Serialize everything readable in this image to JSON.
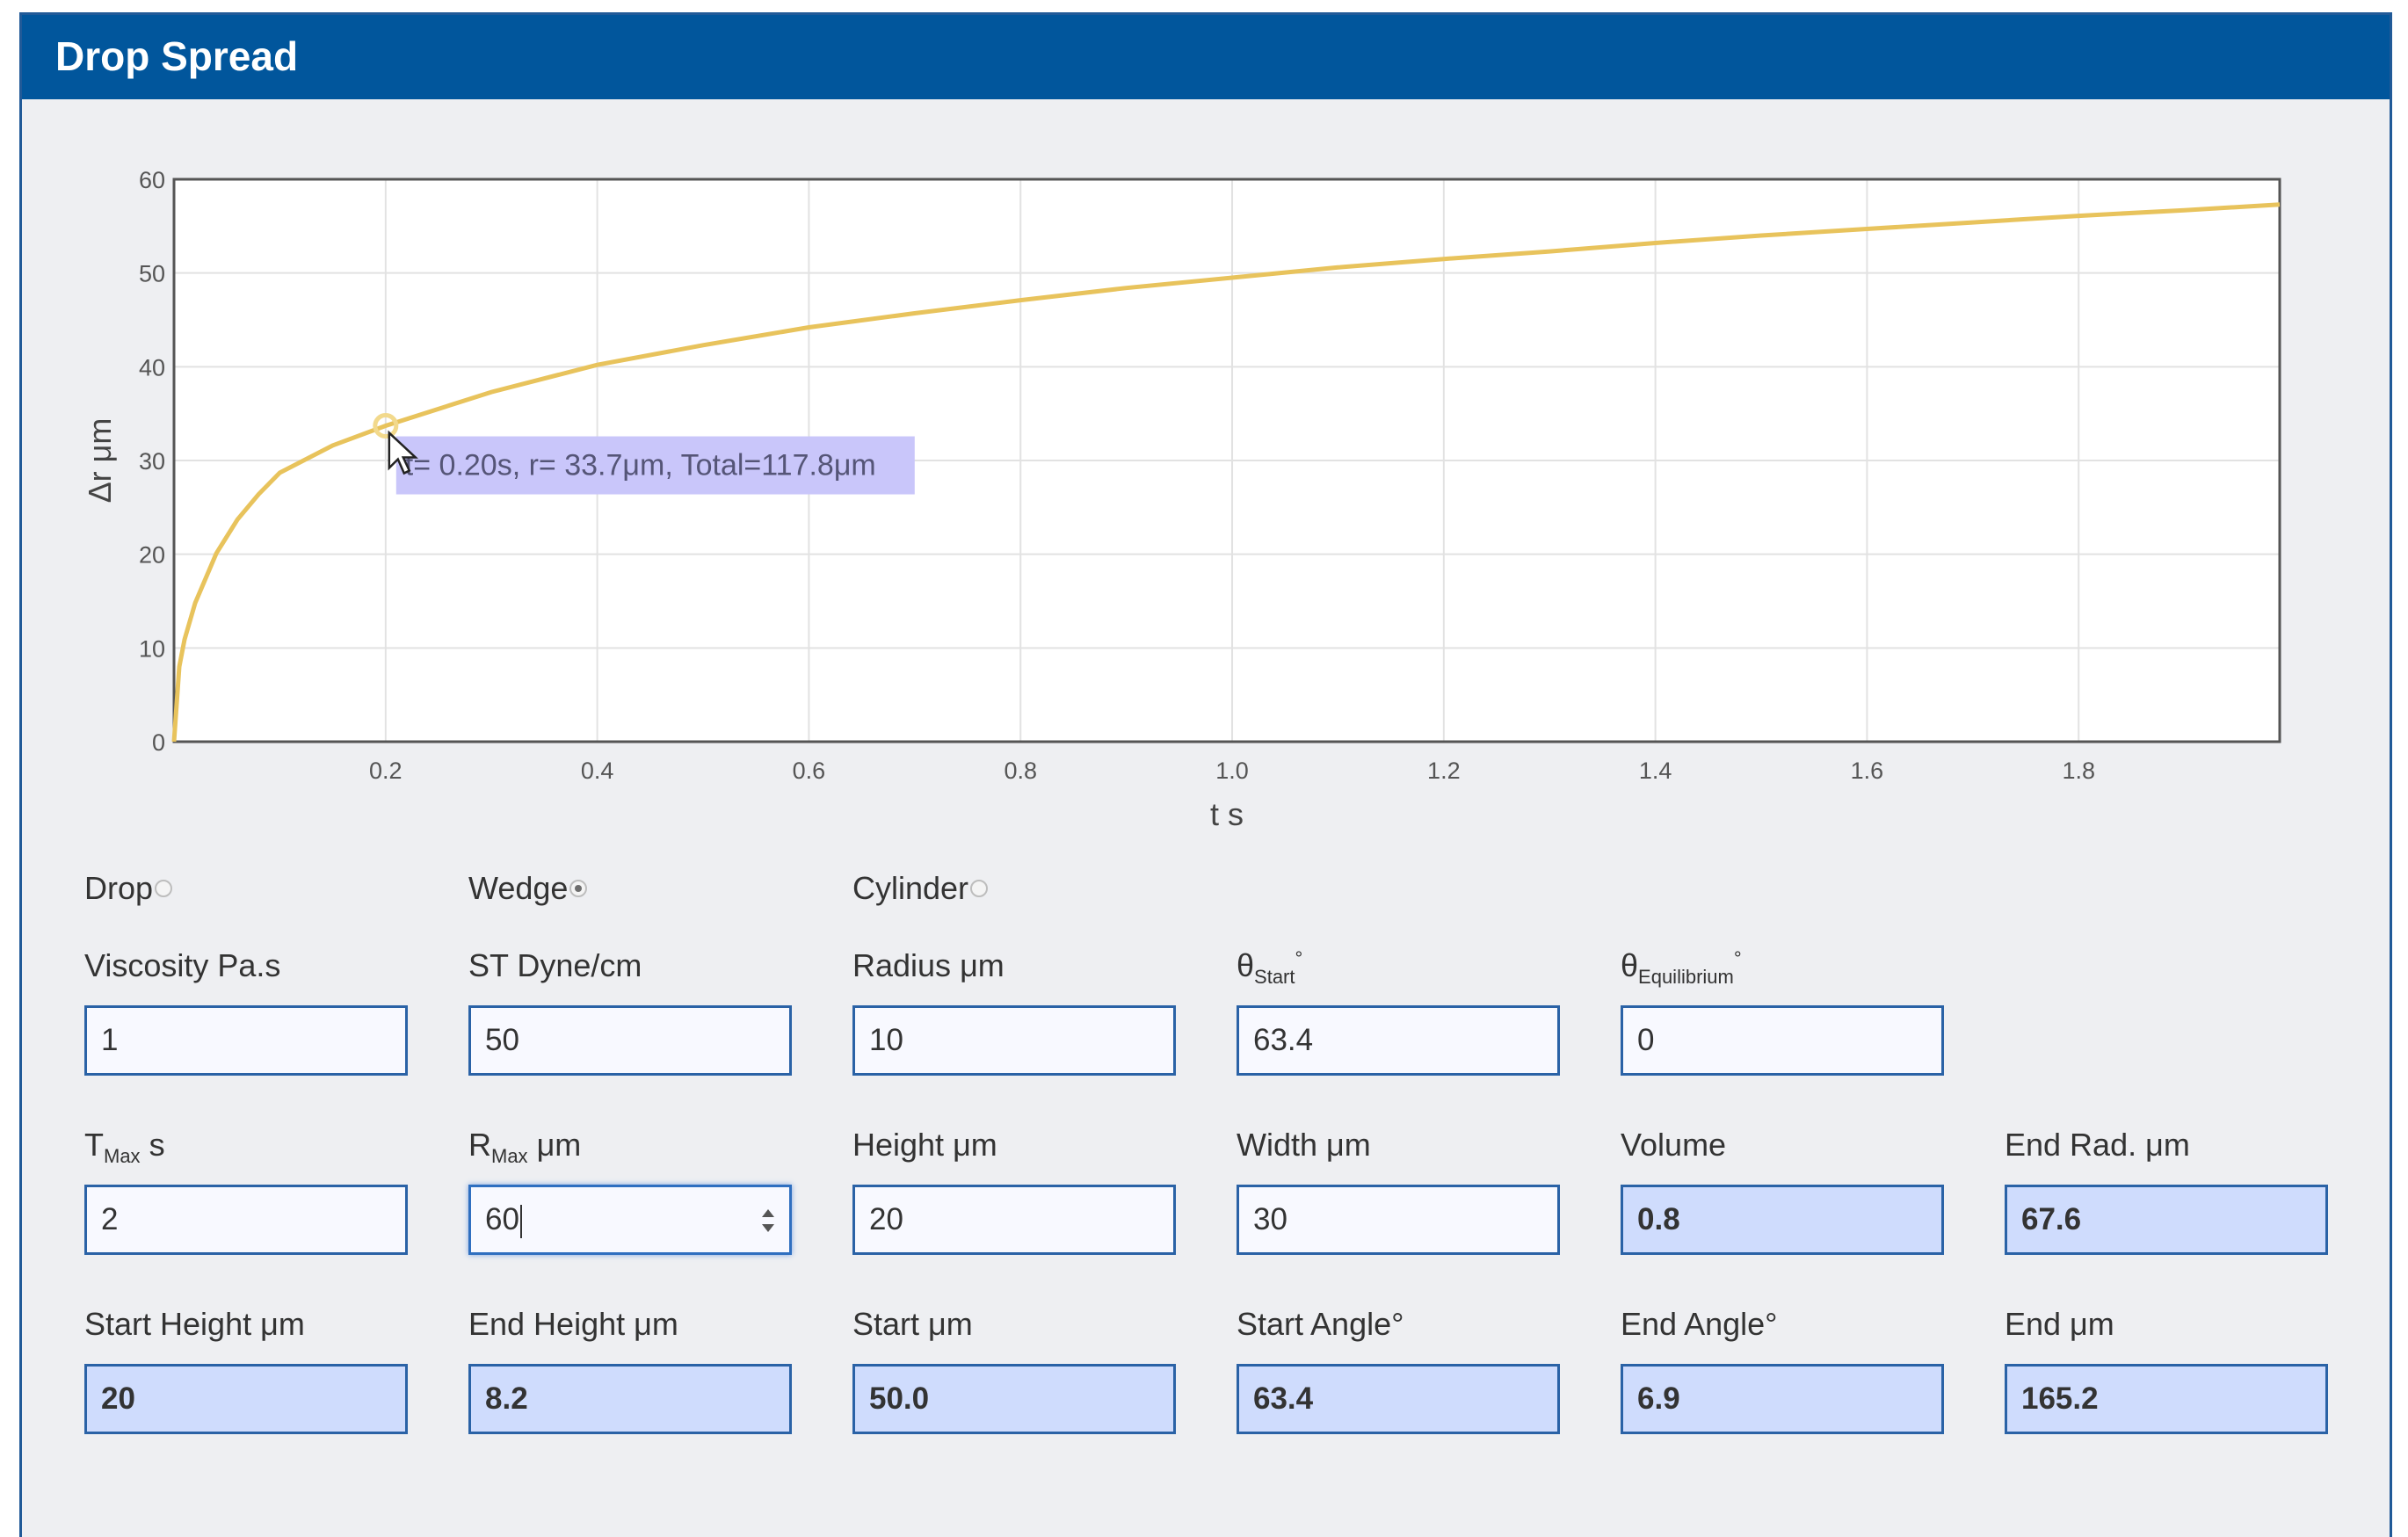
{
  "window": {
    "title": "Drop Spread"
  },
  "chart_data": {
    "type": "line",
    "xlabel": "t s",
    "ylabel": "Δr μm",
    "xlim": [
      0,
      1.99
    ],
    "ylim": [
      0,
      60
    ],
    "x_ticks": [
      "0.2",
      "0.4",
      "0.6",
      "0.8",
      "1.0",
      "1.2",
      "1.4",
      "1.6",
      "1.8"
    ],
    "y_ticks": [
      "0",
      "10",
      "20",
      "30",
      "40",
      "50",
      "60"
    ],
    "grid": true,
    "line_color": "#e8c35c",
    "series": [
      {
        "x": [
          0,
          0.005,
          0.01,
          0.02,
          0.04,
          0.06,
          0.08,
          0.1,
          0.15,
          0.2,
          0.3,
          0.4,
          0.5,
          0.6,
          0.7,
          0.8,
          0.9,
          1.0,
          1.1,
          1.2,
          1.3,
          1.4,
          1.5,
          1.6,
          1.7,
          1.8,
          1.9,
          1.99
        ],
        "y": [
          0,
          8.0,
          10.9,
          14.8,
          20.1,
          23.7,
          26.4,
          28.7,
          31.6,
          33.7,
          37.3,
          40.2,
          42.3,
          44.2,
          45.7,
          47.1,
          48.4,
          49.5,
          50.6,
          51.5,
          52.3,
          53.2,
          54.0,
          54.7,
          55.4,
          56.1,
          56.7,
          57.3
        ]
      }
    ],
    "highlight_point": {
      "x": 0.2,
      "y": 33.7
    },
    "tooltip": "t= 0.20s, r= 33.7μm, Total=117.8μm"
  },
  "radios": [
    {
      "label": "Drop",
      "checked": false
    },
    {
      "label": "Wedge",
      "checked": true
    },
    {
      "label": "Cylinder",
      "checked": false
    }
  ],
  "fields": {
    "viscosity": {
      "label": "Viscosity Pa.s",
      "value": "1"
    },
    "st": {
      "label": "ST Dyne/cm",
      "value": "50"
    },
    "radius": {
      "label": "Radius μm",
      "value": "10"
    },
    "theta_start": {
      "label_main": "θ",
      "label_sub": "Start",
      "label_sup": "°",
      "value": "63.4"
    },
    "theta_eq": {
      "label_main": "θ",
      "label_sub": "Equilibrium",
      "label_sup": "°",
      "value": "0"
    },
    "tmax": {
      "label_main": "T",
      "label_sub": "Max",
      "label_rest": " s",
      "value": "2"
    },
    "rmax": {
      "label_main": "R",
      "label_sub": "Max",
      "label_rest": " μm",
      "value": "60"
    },
    "height": {
      "label": "Height μm",
      "value": "20"
    },
    "width": {
      "label": "Width μm",
      "value": "30"
    },
    "volume": {
      "label": "Volume",
      "value": "0.8"
    },
    "end_rad": {
      "label": "End Rad. μm",
      "value": "67.6"
    },
    "start_height": {
      "label": "Start Height μm",
      "value": "20"
    },
    "end_height": {
      "label": "End Height μm",
      "value": "8.2"
    },
    "start": {
      "label": "Start μm",
      "value": "50.0"
    },
    "start_angle": {
      "label": "Start Angle°",
      "value": "63.4"
    },
    "end_angle": {
      "label": "End Angle°",
      "value": "6.9"
    },
    "end": {
      "label": "End μm",
      "value": "165.2"
    }
  }
}
